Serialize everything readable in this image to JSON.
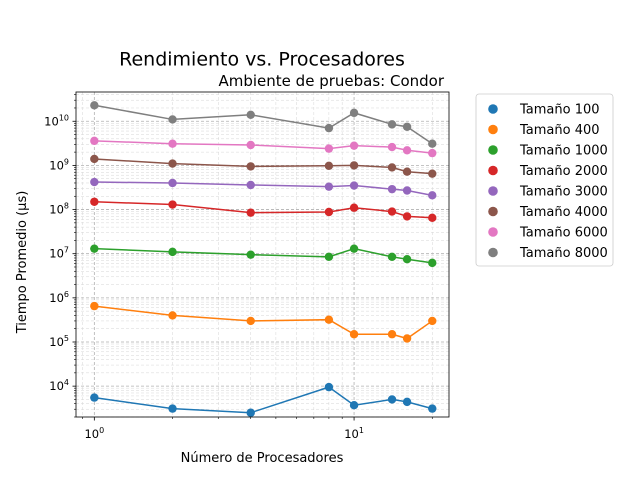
{
  "chart_data": {
    "type": "line",
    "title": "Rendimiento vs. Procesadores",
    "subtitle": "Ambiente de pruebas: Condor",
    "xlabel": "Número de Procesadores",
    "ylabel": "Tiempo Promedio (µs)",
    "xscale": "log",
    "yscale": "log",
    "xlim": [
      0.85,
      23.2
    ],
    "ylim": [
      2000,
      46000000000
    ],
    "grid": "both (major and minor), dashed light gray",
    "legend_position": "outside right, top",
    "x": [
      1,
      2,
      4,
      8,
      10,
      14,
      16,
      20
    ],
    "x_ticks": [
      {
        "value": 1,
        "base": "10",
        "exp": "0"
      },
      {
        "value": 10,
        "base": "10",
        "exp": "1"
      }
    ],
    "y_ticks": [
      {
        "value": 10000,
        "base": "10",
        "exp": "4"
      },
      {
        "value": 100000,
        "base": "10",
        "exp": "5"
      },
      {
        "value": 1000000,
        "base": "10",
        "exp": "6"
      },
      {
        "value": 10000000,
        "base": "10",
        "exp": "7"
      },
      {
        "value": 100000000,
        "base": "10",
        "exp": "8"
      },
      {
        "value": 1000000000,
        "base": "10",
        "exp": "9"
      },
      {
        "value": 10000000000,
        "base": "10",
        "exp": "10"
      }
    ],
    "series": [
      {
        "name": "Tamaño 100",
        "color": "#1f77b4",
        "values": [
          5500,
          3100,
          2500,
          9500,
          3700,
          5000,
          4400,
          3100
        ]
      },
      {
        "name": "Tamaño 400",
        "color": "#ff7f0e",
        "values": [
          650000,
          400000,
          300000,
          320000,
          150000,
          150000,
          120000,
          300000
        ]
      },
      {
        "name": "Tamaño 1000",
        "color": "#2ca02c",
        "values": [
          13000000,
          11000000,
          9500000,
          8500000,
          13000000,
          8500000,
          7500000,
          6200000
        ]
      },
      {
        "name": "Tamaño 2000",
        "color": "#d62728",
        "values": [
          150000000,
          130000000,
          85000000,
          88000000,
          110000000,
          90000000,
          70000000,
          65000000
        ]
      },
      {
        "name": "Tamaño 3000",
        "color": "#9467bd",
        "values": [
          420000000,
          400000000,
          360000000,
          330000000,
          350000000,
          290000000,
          270000000,
          210000000
        ]
      },
      {
        "name": "Tamaño 4000",
        "color": "#8c564b",
        "values": [
          1400000000,
          1100000000,
          950000000,
          980000000,
          1000000000,
          900000000,
          720000000,
          650000000
        ]
      },
      {
        "name": "Tamaño 6000",
        "color": "#e377c2",
        "values": [
          3600000000,
          3100000000,
          2900000000,
          2400000000,
          2800000000,
          2600000000,
          2200000000,
          1900000000
        ]
      },
      {
        "name": "Tamaño 8000",
        "color": "#7f7f7f",
        "values": [
          23000000000,
          11000000000,
          14000000000,
          7000000000,
          15500000000,
          8500000000,
          7500000000,
          3100000000
        ]
      }
    ]
  }
}
